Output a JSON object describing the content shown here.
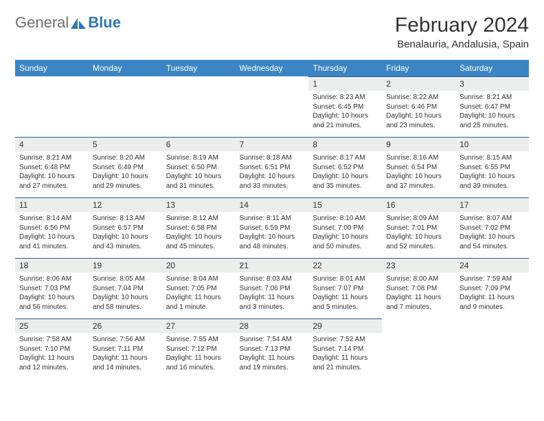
{
  "logo": {
    "part1": "General",
    "part2": "Blue"
  },
  "title": "February 2024",
  "subtitle": "Benalauria, Andalusia, Spain",
  "header_color": "#3b85c4",
  "header_text_color": "#ffffff",
  "daynum_bg": "#eceded",
  "border_color": "#2c5a87",
  "text_color": "#333333",
  "logo_gray": "#6f6f6f",
  "logo_blue": "#2b78bd",
  "day_fontsize": 10,
  "header_fontsize": 12,
  "title_fontsize": 30,
  "subtitle_fontsize": 15,
  "days": [
    "Sunday",
    "Monday",
    "Tuesday",
    "Wednesday",
    "Thursday",
    "Friday",
    "Saturday"
  ],
  "weeks": [
    [
      null,
      null,
      null,
      null,
      {
        "n": "1",
        "sr": "Sunrise: 8:23 AM",
        "ss": "Sunset: 6:45 PM",
        "dl": "Daylight: 10 hours and 21 minutes."
      },
      {
        "n": "2",
        "sr": "Sunrise: 8:22 AM",
        "ss": "Sunset: 6:46 PM",
        "dl": "Daylight: 10 hours and 23 minutes."
      },
      {
        "n": "3",
        "sr": "Sunrise: 8:21 AM",
        "ss": "Sunset: 6:47 PM",
        "dl": "Daylight: 10 hours and 25 minutes."
      }
    ],
    [
      {
        "n": "4",
        "sr": "Sunrise: 8:21 AM",
        "ss": "Sunset: 6:48 PM",
        "dl": "Daylight: 10 hours and 27 minutes."
      },
      {
        "n": "5",
        "sr": "Sunrise: 8:20 AM",
        "ss": "Sunset: 6:49 PM",
        "dl": "Daylight: 10 hours and 29 minutes."
      },
      {
        "n": "6",
        "sr": "Sunrise: 8:19 AM",
        "ss": "Sunset: 6:50 PM",
        "dl": "Daylight: 10 hours and 31 minutes."
      },
      {
        "n": "7",
        "sr": "Sunrise: 8:18 AM",
        "ss": "Sunset: 6:51 PM",
        "dl": "Daylight: 10 hours and 33 minutes."
      },
      {
        "n": "8",
        "sr": "Sunrise: 8:17 AM",
        "ss": "Sunset: 6:52 PM",
        "dl": "Daylight: 10 hours and 35 minutes."
      },
      {
        "n": "9",
        "sr": "Sunrise: 8:16 AM",
        "ss": "Sunset: 6:54 PM",
        "dl": "Daylight: 10 hours and 37 minutes."
      },
      {
        "n": "10",
        "sr": "Sunrise: 8:15 AM",
        "ss": "Sunset: 6:55 PM",
        "dl": "Daylight: 10 hours and 39 minutes."
      }
    ],
    [
      {
        "n": "11",
        "sr": "Sunrise: 8:14 AM",
        "ss": "Sunset: 6:56 PM",
        "dl": "Daylight: 10 hours and 41 minutes."
      },
      {
        "n": "12",
        "sr": "Sunrise: 8:13 AM",
        "ss": "Sunset: 6:57 PM",
        "dl": "Daylight: 10 hours and 43 minutes."
      },
      {
        "n": "13",
        "sr": "Sunrise: 8:12 AM",
        "ss": "Sunset: 6:58 PM",
        "dl": "Daylight: 10 hours and 45 minutes."
      },
      {
        "n": "14",
        "sr": "Sunrise: 8:11 AM",
        "ss": "Sunset: 6:59 PM",
        "dl": "Daylight: 10 hours and 48 minutes."
      },
      {
        "n": "15",
        "sr": "Sunrise: 8:10 AM",
        "ss": "Sunset: 7:00 PM",
        "dl": "Daylight: 10 hours and 50 minutes."
      },
      {
        "n": "16",
        "sr": "Sunrise: 8:09 AM",
        "ss": "Sunset: 7:01 PM",
        "dl": "Daylight: 10 hours and 52 minutes."
      },
      {
        "n": "17",
        "sr": "Sunrise: 8:07 AM",
        "ss": "Sunset: 7:02 PM",
        "dl": "Daylight: 10 hours and 54 minutes."
      }
    ],
    [
      {
        "n": "18",
        "sr": "Sunrise: 8:06 AM",
        "ss": "Sunset: 7:03 PM",
        "dl": "Daylight: 10 hours and 56 minutes."
      },
      {
        "n": "19",
        "sr": "Sunrise: 8:05 AM",
        "ss": "Sunset: 7:04 PM",
        "dl": "Daylight: 10 hours and 58 minutes."
      },
      {
        "n": "20",
        "sr": "Sunrise: 8:04 AM",
        "ss": "Sunset: 7:05 PM",
        "dl": "Daylight: 11 hours and 1 minute."
      },
      {
        "n": "21",
        "sr": "Sunrise: 8:03 AM",
        "ss": "Sunset: 7:06 PM",
        "dl": "Daylight: 11 hours and 3 minutes."
      },
      {
        "n": "22",
        "sr": "Sunrise: 8:01 AM",
        "ss": "Sunset: 7:07 PM",
        "dl": "Daylight: 11 hours and 5 minutes."
      },
      {
        "n": "23",
        "sr": "Sunrise: 8:00 AM",
        "ss": "Sunset: 7:08 PM",
        "dl": "Daylight: 11 hours and 7 minutes."
      },
      {
        "n": "24",
        "sr": "Sunrise: 7:59 AM",
        "ss": "Sunset: 7:09 PM",
        "dl": "Daylight: 11 hours and 9 minutes."
      }
    ],
    [
      {
        "n": "25",
        "sr": "Sunrise: 7:58 AM",
        "ss": "Sunset: 7:10 PM",
        "dl": "Daylight: 11 hours and 12 minutes."
      },
      {
        "n": "26",
        "sr": "Sunrise: 7:56 AM",
        "ss": "Sunset: 7:11 PM",
        "dl": "Daylight: 11 hours and 14 minutes."
      },
      {
        "n": "27",
        "sr": "Sunrise: 7:55 AM",
        "ss": "Sunset: 7:12 PM",
        "dl": "Daylight: 11 hours and 16 minutes."
      },
      {
        "n": "28",
        "sr": "Sunrise: 7:54 AM",
        "ss": "Sunset: 7:13 PM",
        "dl": "Daylight: 11 hours and 19 minutes."
      },
      {
        "n": "29",
        "sr": "Sunrise: 7:52 AM",
        "ss": "Sunset: 7:14 PM",
        "dl": "Daylight: 11 hours and 21 minutes."
      },
      null,
      null
    ]
  ]
}
